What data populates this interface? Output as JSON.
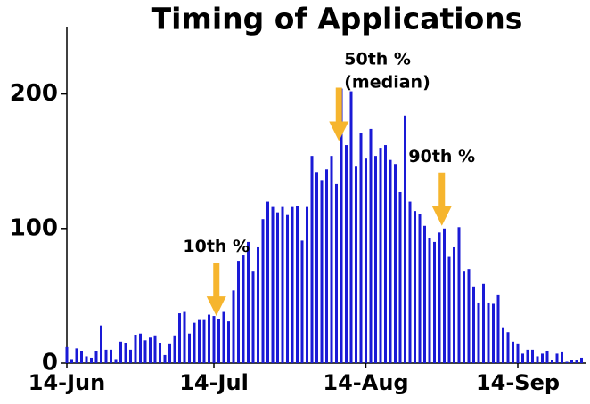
{
  "chart_data": {
    "type": "bar",
    "title": "Timing of Applications",
    "x": [
      0,
      1,
      2,
      3,
      4,
      5,
      6,
      7,
      8,
      9,
      10,
      11,
      12,
      13,
      14,
      15,
      16,
      17,
      18,
      19,
      20,
      21,
      22,
      23,
      24,
      25,
      26,
      27,
      28,
      29,
      30,
      31,
      32,
      33,
      34,
      35,
      36,
      37,
      38,
      39,
      40,
      41,
      42,
      43,
      44,
      45,
      46,
      47,
      48,
      49,
      50,
      51,
      52,
      53,
      54,
      55,
      56,
      57,
      58,
      59,
      60,
      61,
      62,
      63,
      64,
      65,
      66,
      67,
      68,
      69,
      70,
      71,
      72,
      73,
      74,
      75,
      76,
      77,
      78,
      79,
      80,
      81,
      82,
      83,
      84,
      85,
      86,
      87,
      88,
      89,
      90,
      91,
      92,
      93,
      94,
      95,
      96,
      97,
      98,
      99,
      100,
      101,
      102,
      103,
      104,
      105
    ],
    "values": [
      12,
      3,
      11,
      9,
      5,
      4,
      9,
      28,
      10,
      10,
      3,
      16,
      15,
      10,
      21,
      22,
      17,
      19,
      20,
      15,
      6,
      14,
      20,
      37,
      38,
      22,
      30,
      32,
      32,
      36,
      35,
      33,
      38,
      31,
      54,
      76,
      80,
      90,
      68,
      86,
      107,
      120,
      116,
      112,
      116,
      110,
      116,
      117,
      91,
      116,
      154,
      142,
      136,
      144,
      154,
      133,
      204,
      162,
      202,
      146,
      171,
      152,
      174,
      154,
      160,
      162,
      151,
      148,
      127,
      184,
      120,
      113,
      111,
      102,
      93,
      90,
      97,
      100,
      79,
      86,
      101,
      68,
      70,
      57,
      45,
      59,
      45,
      44,
      51,
      26,
      23,
      16,
      14,
      7,
      10,
      10,
      5,
      7,
      9,
      2,
      7,
      8,
      1,
      2,
      2,
      4
    ],
    "color": "#1a1ad6",
    "xlim": [
      0,
      106
    ],
    "xticks": [
      {
        "value": 0,
        "label": "14-Jun"
      },
      {
        "value": 30,
        "label": "14-Jul"
      },
      {
        "value": 61,
        "label": "14-Aug"
      },
      {
        "value": 92,
        "label": "14-Sep"
      }
    ],
    "ylim": [
      0,
      250
    ],
    "yticks": [
      0,
      100,
      200
    ],
    "annotations": [
      {
        "lines": [
          "10th %"
        ],
        "x": 30.5,
        "y": 35
      },
      {
        "lines": [
          "50th %",
          "(median)"
        ],
        "x": 55.5,
        "y": 165
      },
      {
        "lines": [
          "90th %"
        ],
        "x": 76.5,
        "y": 102
      }
    ],
    "arrow_color": "#f6b52e"
  }
}
